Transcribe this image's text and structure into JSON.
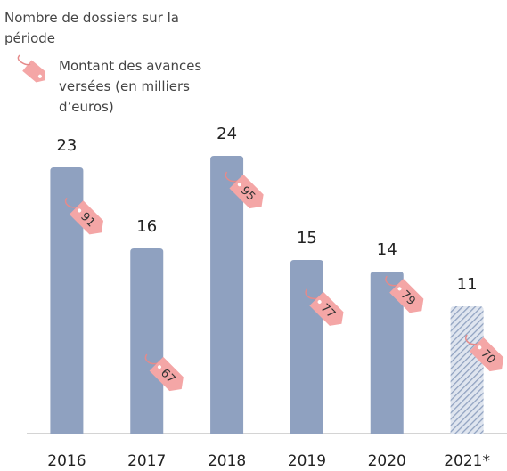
{
  "chart_data": {
    "type": "bar",
    "legend": [
      "Nombre de dossiers  sur la période",
      "Montant des avances versées (en milliers d’euros)"
    ],
    "categories": [
      "2016",
      "2017",
      "2018",
      "2019",
      "2020",
      "2021*"
    ],
    "series": [
      {
        "name": "Nombre de dossiers  sur la période",
        "color": "#8fa1c0",
        "values": [
          23,
          16,
          24,
          15,
          14,
          11
        ],
        "fills": [
          "solid",
          "solid",
          "solid",
          "solid",
          "solid",
          "hatched"
        ]
      },
      {
        "name": "Montant des avances versées (en milliers d’euros)",
        "color": "#f4a6a6",
        "values": [
          91,
          67,
          95,
          77,
          79,
          70
        ]
      }
    ]
  }
}
